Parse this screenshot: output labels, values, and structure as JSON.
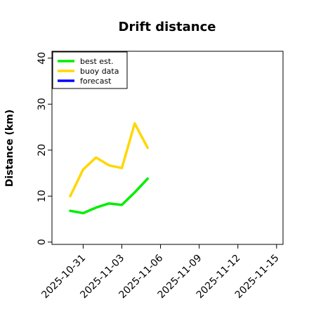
{
  "chart_data": {
    "type": "line",
    "title": "Drift distance",
    "ylabel": "Distance (km)",
    "xlabel": "",
    "ylim": [
      -0.5,
      41.5
    ],
    "yticks": [
      0,
      10,
      20,
      30,
      40
    ],
    "xlim": [
      "2025-10-28T14:00",
      "2025-11-15T12:00"
    ],
    "xticks": [
      {
        "date": "2025-10-31",
        "label": "2025-10-31",
        "color": "#000000"
      },
      {
        "date": "2025-11-03",
        "label": "2025-11-03",
        "color": "#000000"
      },
      {
        "date": "2025-11-06",
        "label": "2025-11-06",
        "color": "#228b22"
      },
      {
        "date": "2025-11-09",
        "label": "2025-11-09",
        "color": "#000000"
      },
      {
        "date": "2025-11-12",
        "label": "2025-11-12",
        "color": "#000000"
      },
      {
        "date": "2025-11-15",
        "label": "2025-11-15",
        "color": "#000000"
      }
    ],
    "legend_position": "top-left",
    "series": [
      {
        "name": "best est.",
        "color": "#00ee00",
        "points": [
          [
            "2025-10-30",
            6.8
          ],
          [
            "2025-10-31",
            6.3
          ],
          [
            "2025-11-01",
            7.5
          ],
          [
            "2025-11-02",
            8.4
          ],
          [
            "2025-11-03",
            8.1
          ],
          [
            "2025-11-04",
            10.8
          ],
          [
            "2025-11-05",
            13.8
          ]
        ]
      },
      {
        "name": "buoy data",
        "color": "#ffd700",
        "points": [
          [
            "2025-10-30",
            10.0
          ],
          [
            "2025-10-31",
            15.8
          ],
          [
            "2025-11-01",
            18.4
          ],
          [
            "2025-11-02",
            16.7
          ],
          [
            "2025-11-03",
            16.1
          ],
          [
            "2025-11-04",
            25.8
          ],
          [
            "2025-11-05",
            20.5
          ]
        ]
      },
      {
        "name": "forecast",
        "color": "#0000ff",
        "points": []
      }
    ]
  }
}
